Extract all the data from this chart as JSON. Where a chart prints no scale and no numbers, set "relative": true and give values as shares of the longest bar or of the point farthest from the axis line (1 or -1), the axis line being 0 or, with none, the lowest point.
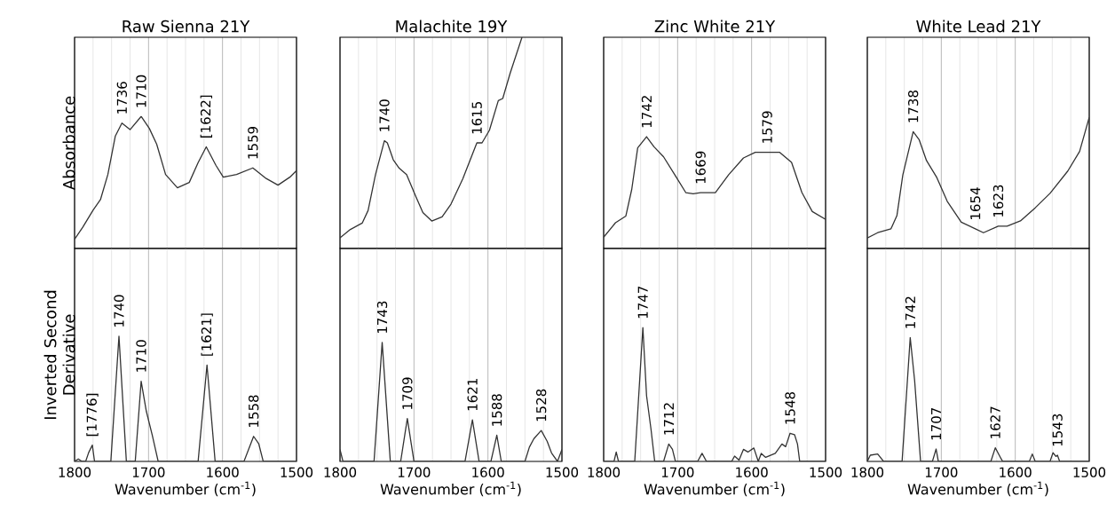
{
  "chart_data": [
    {
      "type": "line",
      "relative": true,
      "title": "Raw Sienna 21Y",
      "ylabel": "Absorbance",
      "xlim": [
        1800,
        1500
      ],
      "xticks": [
        1800,
        {
          "value": 1775,
          "label": null
        },
        {
          "value": 1750,
          "label": null
        },
        {
          "value": 1725,
          "label": null
        },
        1700,
        {
          "value": 1675,
          "label": null
        },
        {
          "value": 1650,
          "label": null
        },
        {
          "value": 1625,
          "label": null
        },
        1600,
        {
          "value": 1575,
          "label": null
        },
        {
          "value": 1550,
          "label": null
        },
        {
          "value": 1525,
          "label": null
        },
        1500
      ],
      "grid": "x",
      "tick_labels": false,
      "color": "#333333",
      "x": [
        1800,
        1789,
        1775,
        1765,
        1755,
        1745,
        1736,
        1725,
        1710,
        1699,
        1689,
        1677,
        1661,
        1645,
        1633,
        1622,
        1609,
        1599,
        1581,
        1559,
        1541,
        1525,
        1509,
        1500
      ],
      "values": [
        0.07,
        0.16,
        0.29,
        0.37,
        0.56,
        0.85,
        0.95,
        0.9,
        1.0,
        0.91,
        0.79,
        0.56,
        0.46,
        0.5,
        0.65,
        0.77,
        0.63,
        0.54,
        0.56,
        0.61,
        0.53,
        0.48,
        0.54,
        0.59
      ],
      "annotations": [
        {
          "text": "1736",
          "x": 1736,
          "y": 0.95
        },
        {
          "text": "1710",
          "x": 1710,
          "y": 1.0
        },
        {
          "text": "[1622]",
          "x": 1622,
          "y": 0.77
        },
        {
          "text": "1559",
          "x": 1559,
          "y": 0.61
        }
      ]
    },
    {
      "type": "line",
      "relative": true,
      "title": "Malachite 19Y",
      "xlim": [
        1800,
        1500
      ],
      "xticks": [
        1800,
        {
          "value": 1775,
          "label": null
        },
        {
          "value": 1750,
          "label": null
        },
        {
          "value": 1725,
          "label": null
        },
        1700,
        {
          "value": 1675,
          "label": null
        },
        {
          "value": 1650,
          "label": null
        },
        {
          "value": 1625,
          "label": null
        },
        1600,
        {
          "value": 1575,
          "label": null
        },
        {
          "value": 1550,
          "label": null
        },
        {
          "value": 1525,
          "label": null
        },
        1500
      ],
      "grid": "x",
      "tick_labels": false,
      "color": "#333333",
      "x": [
        1800,
        1786,
        1770,
        1762,
        1752,
        1740,
        1736,
        1728,
        1720,
        1710,
        1698,
        1688,
        1676,
        1662,
        1650,
        1634,
        1615,
        1608,
        1598,
        1586,
        1580,
        1570,
        1554
      ],
      "values": [
        0.05,
        0.09,
        0.12,
        0.18,
        0.35,
        0.51,
        0.5,
        0.42,
        0.38,
        0.35,
        0.25,
        0.17,
        0.13,
        0.15,
        0.21,
        0.33,
        0.5,
        0.5,
        0.56,
        0.7,
        0.71,
        0.83,
        1.0
      ],
      "annotations": [
        {
          "text": "1740",
          "x": 1740,
          "y": 0.51
        },
        {
          "text": "1615",
          "x": 1615,
          "y": 0.5
        }
      ]
    },
    {
      "type": "line",
      "relative": true,
      "title": "Zinc White 21Y",
      "xlim": [
        1800,
        1500
      ],
      "xticks": [
        1800,
        {
          "value": 1775,
          "label": null
        },
        {
          "value": 1750,
          "label": null
        },
        {
          "value": 1725,
          "label": null
        },
        1700,
        {
          "value": 1675,
          "label": null
        },
        {
          "value": 1650,
          "label": null
        },
        {
          "value": 1625,
          "label": null
        },
        1600,
        {
          "value": 1575,
          "label": null
        },
        {
          "value": 1550,
          "label": null
        },
        {
          "value": 1525,
          "label": null
        },
        1500
      ],
      "grid": "x",
      "tick_labels": false,
      "color": "#333333",
      "x": [
        1800,
        1784,
        1770,
        1762,
        1754,
        1742,
        1732,
        1719,
        1703,
        1689,
        1679,
        1669,
        1649,
        1631,
        1611,
        1595,
        1579,
        1562,
        1546,
        1532,
        1518,
        1500
      ],
      "values": [
        0.1,
        0.23,
        0.29,
        0.53,
        0.9,
        1.0,
        0.91,
        0.82,
        0.65,
        0.5,
        0.49,
        0.5,
        0.5,
        0.66,
        0.81,
        0.86,
        0.86,
        0.86,
        0.77,
        0.5,
        0.33,
        0.26
      ],
      "annotations": [
        {
          "text": "1742",
          "x": 1742,
          "y": 1.0
        },
        {
          "text": "1669",
          "x": 1669,
          "y": 0.5
        },
        {
          "text": "1579",
          "x": 1579,
          "y": 0.86
        }
      ]
    },
    {
      "type": "line",
      "relative": true,
      "title": "White Lead 21Y",
      "xlim": [
        1800,
        1500
      ],
      "xticks": [
        1800,
        {
          "value": 1775,
          "label": null
        },
        {
          "value": 1750,
          "label": null
        },
        {
          "value": 1725,
          "label": null
        },
        1700,
        {
          "value": 1675,
          "label": null
        },
        {
          "value": 1650,
          "label": null
        },
        {
          "value": 1625,
          "label": null
        },
        1600,
        {
          "value": 1575,
          "label": null
        },
        {
          "value": 1550,
          "label": null
        },
        {
          "value": 1525,
          "label": null
        },
        1500
      ],
      "grid": "x",
      "tick_labels": false,
      "color": "#333333",
      "x": [
        1800,
        1786,
        1768,
        1760,
        1752,
        1738,
        1730,
        1720,
        1706,
        1692,
        1673,
        1654,
        1643,
        1623,
        1611,
        1593,
        1573,
        1553,
        1529,
        1513,
        1500
      ],
      "values": [
        0.08,
        0.12,
        0.15,
        0.25,
        0.56,
        0.89,
        0.83,
        0.67,
        0.54,
        0.36,
        0.2,
        0.15,
        0.12,
        0.17,
        0.17,
        0.21,
        0.31,
        0.42,
        0.59,
        0.74,
        1.0
      ],
      "annotations": [
        {
          "text": "1738",
          "x": 1738,
          "y": 0.89
        },
        {
          "text": "1654",
          "x": 1654,
          "y": 0.15
        },
        {
          "text": "1623",
          "x": 1623,
          "y": 0.17
        }
      ]
    },
    {
      "type": "line",
      "relative": true,
      "xlabel": "Wavenumber (cm$^{-1}$)",
      "ylabel": "Inverted Second Derivative",
      "xlim": [
        1800,
        1500
      ],
      "xticks": [
        1800,
        {
          "value": 1775,
          "label": null
        },
        {
          "value": 1750,
          "label": null
        },
        {
          "value": 1725,
          "label": null
        },
        1700,
        {
          "value": 1675,
          "label": null
        },
        {
          "value": 1650,
          "label": null
        },
        {
          "value": 1625,
          "label": null
        },
        1600,
        {
          "value": 1575,
          "label": null
        },
        {
          "value": 1550,
          "label": null
        },
        {
          "value": 1525,
          "label": null
        },
        1500
      ],
      "grid": "x",
      "tick_labels": "x",
      "color": "#333333",
      "x": [
        1800,
        1795,
        1790,
        1785,
        1781,
        1776,
        1773,
        1751,
        1740,
        1730,
        1718,
        1710,
        1703,
        1695,
        1687,
        1633,
        1621,
        1610,
        1571,
        1558,
        1551,
        1545,
        1500
      ],
      "values": [
        0,
        0.02,
        0,
        0,
        0.07,
        0.13,
        0,
        0,
        1.0,
        0,
        0,
        0.64,
        0.4,
        0.21,
        0,
        0,
        0.77,
        0,
        0,
        0.2,
        0.14,
        0,
        0
      ],
      "annotations": [
        {
          "text": "[1776]",
          "x": 1776,
          "y": 0.13
        },
        {
          "text": "1740",
          "x": 1740,
          "y": 1.0
        },
        {
          "text": "1710",
          "x": 1710,
          "y": 0.64
        },
        {
          "text": "[1621]",
          "x": 1621,
          "y": 0.77
        },
        {
          "text": "1558",
          "x": 1558,
          "y": 0.2
        }
      ]
    },
    {
      "type": "line",
      "relative": true,
      "xlabel": "Wavenumber (cm$^{-1}$)",
      "xlim": [
        1800,
        1500
      ],
      "xticks": [
        1800,
        {
          "value": 1775,
          "label": null
        },
        {
          "value": 1750,
          "label": null
        },
        {
          "value": 1725,
          "label": null
        },
        1700,
        {
          "value": 1675,
          "label": null
        },
        {
          "value": 1650,
          "label": null
        },
        {
          "value": 1625,
          "label": null
        },
        1600,
        {
          "value": 1575,
          "label": null
        },
        {
          "value": 1550,
          "label": null
        },
        {
          "value": 1525,
          "label": null
        },
        1500
      ],
      "grid": "x",
      "tick_labels": "x",
      "color": "#333333",
      "x": [
        1800,
        1796,
        1754,
        1743,
        1732,
        1718,
        1709,
        1700,
        1631,
        1621,
        1612,
        1596,
        1588,
        1582,
        1550,
        1544,
        1538,
        1528,
        1520,
        1514,
        1506,
        1500
      ],
      "values": [
        0.1,
        0,
        0,
        1.0,
        0,
        0,
        0.36,
        0,
        0,
        0.35,
        0,
        0,
        0.22,
        0,
        0,
        0.12,
        0.19,
        0.26,
        0.17,
        0.07,
        0,
        0.1
      ],
      "annotations": [
        {
          "text": "1743",
          "x": 1743,
          "y": 1.0
        },
        {
          "text": "1709",
          "x": 1709,
          "y": 0.36
        },
        {
          "text": "1621",
          "x": 1621,
          "y": 0.35
        },
        {
          "text": "1588",
          "x": 1588,
          "y": 0.22
        },
        {
          "text": "1528",
          "x": 1528,
          "y": 0.26
        }
      ]
    },
    {
      "type": "line",
      "relative": true,
      "xlabel": "Wavenumber (cm$^{-1}$)",
      "xlim": [
        1800,
        1500
      ],
      "xticks": [
        1800,
        {
          "value": 1775,
          "label": null
        },
        {
          "value": 1750,
          "label": null
        },
        {
          "value": 1725,
          "label": null
        },
        1700,
        {
          "value": 1675,
          "label": null
        },
        {
          "value": 1650,
          "label": null
        },
        {
          "value": 1625,
          "label": null
        },
        1600,
        {
          "value": 1575,
          "label": null
        },
        {
          "value": 1550,
          "label": null
        },
        {
          "value": 1525,
          "label": null
        },
        1500
      ],
      "grid": "x",
      "tick_labels": "x",
      "color": "#333333",
      "x": [
        1800,
        1786,
        1783,
        1780,
        1758,
        1747,
        1742,
        1736,
        1731,
        1719,
        1712,
        1707,
        1703,
        1673,
        1667,
        1661,
        1627,
        1623,
        1617,
        1611,
        1605,
        1597,
        1591,
        1587,
        1581,
        1568,
        1559,
        1554,
        1548,
        1542,
        1538,
        1535,
        1500
      ],
      "values": [
        0,
        0,
        0.07,
        0,
        0,
        1.0,
        0.49,
        0.24,
        0,
        0,
        0.13,
        0.09,
        0,
        0,
        0.06,
        0,
        0,
        0.04,
        0.01,
        0.09,
        0.07,
        0.1,
        0,
        0.06,
        0.03,
        0.06,
        0.13,
        0.11,
        0.21,
        0.2,
        0.13,
        0,
        0
      ],
      "annotations": [
        {
          "text": "1747",
          "x": 1747,
          "y": 1.0
        },
        {
          "text": "1712",
          "x": 1712,
          "y": 0.13
        },
        {
          "text": "1548",
          "x": 1548,
          "y": 0.21
        }
      ]
    },
    {
      "type": "line",
      "relative": true,
      "xlabel": "Wavenumber (cm$^{-1}$)",
      "xlim": [
        1800,
        1500
      ],
      "xticks": [
        1800,
        {
          "value": 1775,
          "label": null
        },
        {
          "value": 1750,
          "label": null
        },
        {
          "value": 1725,
          "label": null
        },
        1700,
        {
          "value": 1675,
          "label": null
        },
        {
          "value": 1650,
          "label": null
        },
        {
          "value": 1625,
          "label": null
        },
        1600,
        {
          "value": 1575,
          "label": null
        },
        {
          "value": 1550,
          "label": null
        },
        {
          "value": 1525,
          "label": null
        },
        1500
      ],
      "grid": "x",
      "tick_labels": "x",
      "color": "#333333",
      "x": [
        1800,
        1796,
        1786,
        1778,
        1753,
        1742,
        1736,
        1728,
        1712,
        1707,
        1704,
        1633,
        1627,
        1619,
        1617,
        1581,
        1577,
        1573,
        1553,
        1549,
        1545,
        1543,
        1540,
        1500
      ],
      "values": [
        0,
        0.05,
        0.06,
        0,
        0,
        1.0,
        0.65,
        0,
        0,
        0.1,
        0,
        0,
        0.11,
        0.02,
        0,
        0,
        0.06,
        0,
        0,
        0.07,
        0.04,
        0.05,
        0,
        0
      ],
      "annotations": [
        {
          "text": "1742",
          "x": 1742,
          "y": 1.0
        },
        {
          "text": "1707",
          "x": 1707,
          "y": 0.1
        },
        {
          "text": "1627",
          "x": 1627,
          "y": 0.11
        },
        {
          "text": "1543",
          "x": 1543,
          "y": 0.05
        }
      ]
    }
  ]
}
